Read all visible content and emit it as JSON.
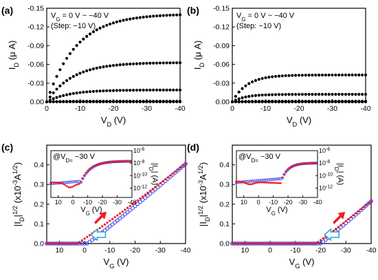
{
  "panels": [
    {
      "label": "(a)",
      "type": "scatter",
      "annotation": [
        "V_G = 0 V ~ −40 V",
        "(Step: −10 V)"
      ],
      "xlabel": "V_D (V)",
      "ylabel": "I_D (μ A)",
      "xlim": [
        0,
        -40
      ],
      "ylim": [
        0,
        -0.15
      ],
      "xticks": [
        "0",
        "-10",
        "-20",
        "-30",
        "-40"
      ],
      "yticks": [
        "0.00",
        "-0.03",
        "-0.06",
        "-0.09",
        "-0.12",
        "-0.15"
      ],
      "series": [
        {
          "VG": 0,
          "Isat": 0.0,
          "Vsat": 5
        },
        {
          "VG": -10,
          "Isat": -0.001,
          "Vsat": 8
        },
        {
          "VG": -20,
          "Isat": -0.019,
          "Vsat": 12
        },
        {
          "VG": -30,
          "Isat": -0.063,
          "Vsat": 14
        },
        {
          "VG": -40,
          "Isat": -0.141,
          "Vsat": 16
        }
      ]
    },
    {
      "label": "(b)",
      "type": "scatter",
      "annotation": [
        "V_G = 0 V ~ −40 V",
        "(Step: −10 V)"
      ],
      "xlabel": "V_D (V)",
      "ylabel": "I_D (μ A)",
      "xlim": [
        0,
        -40
      ],
      "ylim": [
        0,
        -0.15
      ],
      "xticks": [
        "0",
        "-10",
        "-20",
        "-30",
        "-40"
      ],
      "yticks": [
        "0.00",
        "-0.03",
        "-0.06",
        "-0.09",
        "-0.12",
        "-0.15"
      ],
      "series": [
        {
          "VG": 0,
          "Isat": 0.0,
          "Vsat": 5
        },
        {
          "VG": -10,
          "Isat": 0.0,
          "Vsat": 5
        },
        {
          "VG": -20,
          "Isat": -0.001,
          "Vsat": 6
        },
        {
          "VG": -30,
          "Isat": -0.012,
          "Vsat": 7
        },
        {
          "VG": -40,
          "Isat": -0.043,
          "Vsat": 8
        }
      ]
    },
    {
      "label": "(c)",
      "type": "scatter",
      "xlabel": "V_G (V)",
      "ylabel": "|I_D|^1/2 (x10^-3 A^1/2)",
      "xlim": [
        15,
        -40
      ],
      "ylim": [
        0,
        0.5
      ],
      "xticks": [
        "10",
        "0",
        "-10",
        "-20",
        "-30",
        "-40"
      ],
      "yticks": [
        "0.0",
        "0.1",
        "0.2",
        "0.3",
        "0.4"
      ],
      "sweep": {
        "Vth_fwd": 3,
        "Vth_rev": -1,
        "end_value": 0.405
      },
      "inset": {
        "annotation": "@V_D= −30 V",
        "xlabel": "V_G (V)",
        "ylabel": "|I_D| (A)",
        "xticks": [
          "10",
          "0",
          "-10",
          "-20",
          "-30",
          "-40"
        ],
        "yticks": [
          "10^-6",
          "10^-8",
          "10^-10",
          "10^-12"
        ],
        "ylim_log": [
          -13.5,
          -6
        ],
        "off_level": -11.2,
        "on_level": -7.7,
        "dip_vg": 2,
        "dip_level": -11.9,
        "rise_vg": -5
      }
    },
    {
      "label": "(d)",
      "type": "scatter",
      "xlabel": "V_G (V)",
      "ylabel": "|I_D|^1/2 (x10^-3 A^1/2)",
      "xlim": [
        15,
        -40
      ],
      "ylim": [
        0,
        0.5
      ],
      "xticks": [
        "10",
        "0",
        "-10",
        "-20",
        "-30",
        "-40"
      ],
      "yticks": [
        "0.0",
        "0.1",
        "0.2",
        "0.3",
        "0.4"
      ],
      "sweep": {
        "Vth_fwd": -18,
        "Vth_rev": -20,
        "end_value": 0.215
      },
      "inset": {
        "annotation": "@V_D= −30 V",
        "xlabel": "V_G (V)",
        "ylabel": "|I_D| (A)",
        "xticks": [
          "10",
          "0",
          "-10",
          "-20",
          "-30",
          "-40"
        ],
        "yticks": [
          "10^-6",
          "10^-8",
          "10^-10",
          "10^-12"
        ],
        "ylim_log": [
          -13.5,
          -6
        ],
        "off_level": -11.0,
        "on_level": -8.0,
        "dip_vg": 6,
        "dip_level": -11.4,
        "rise_vg": -15
      }
    }
  ],
  "colors": {
    "forward": "#ee1c25",
    "reverse": "#3a3ae0",
    "arrow_fill": "#ee1c25",
    "arrow_outline": "#2aa0d8",
    "marker": "#000000"
  }
}
